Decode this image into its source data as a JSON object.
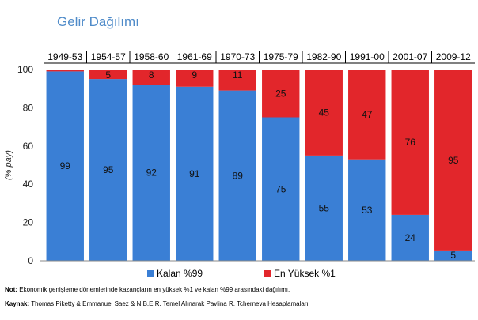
{
  "title": "Gelir Dağılımı",
  "ylabel": "(% pay)",
  "note": {
    "label": "Not:",
    "text": "Ekonomik genişleme dönemlerinde kazançların en yüksek %1 ve kalan %99 arasındaki dağılımı."
  },
  "source": {
    "label": "Kaynak:",
    "text": "Thomas Piketty & Emmanuel Saez & N.B.E.R. Temel Alınarak Pavlina R. Tcherneva Hesaplamaları"
  },
  "chart_data": {
    "type": "bar",
    "stacked": true,
    "categories": [
      "1949-53",
      "1954-57",
      "1958-60",
      "1961-69",
      "1970-73",
      "1975-79",
      "1982-90",
      "1991-00",
      "2001-07",
      "2009-12"
    ],
    "series": [
      {
        "name": "Kalan %99",
        "color": "#3a7fd5",
        "values": [
          99,
          95,
          92,
          91,
          89,
          75,
          55,
          53,
          24,
          5
        ]
      },
      {
        "name": "En Yüksek %1",
        "color": "#e2262b",
        "values": [
          1,
          5,
          8,
          9,
          11,
          25,
          45,
          47,
          76,
          95
        ]
      }
    ],
    "data_labels_top": [
      "",
      "5",
      "8",
      "9",
      "11",
      "25",
      "45",
      "47",
      "76",
      "95"
    ],
    "data_labels_bottom": [
      "99",
      "95",
      "92",
      "91",
      "89",
      "75",
      "55",
      "53",
      "24",
      "5"
    ],
    "yticks": [
      "0",
      "20",
      "40",
      "60",
      "80",
      "100"
    ],
    "ylim": [
      0,
      100
    ],
    "legend_position": "bottom"
  }
}
